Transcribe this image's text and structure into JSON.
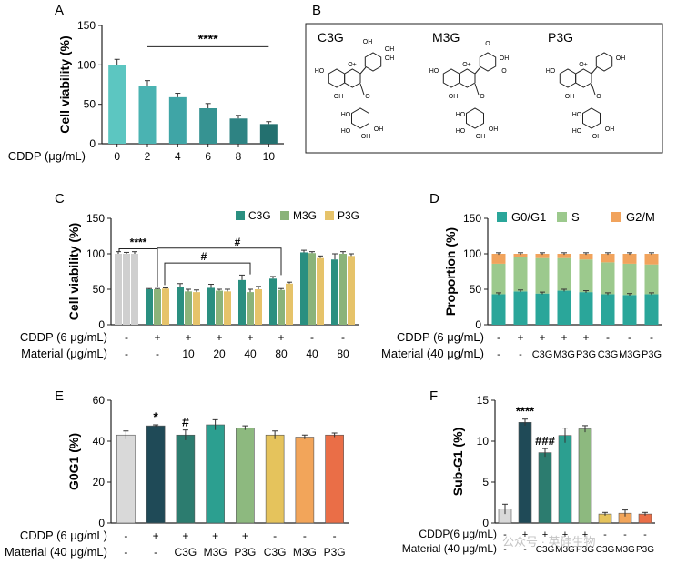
{
  "panel_letters": {
    "a": "A",
    "b": "B",
    "c": "C",
    "d": "D",
    "e": "E",
    "f": "F"
  },
  "panelB": {
    "labels": [
      "C3G",
      "M3G",
      "P3G"
    ],
    "atoms": {
      "OH": "OH",
      "O": "O",
      "Oplus": "O+",
      "HO": "HO",
      "OMe": "O"
    }
  },
  "colors": {
    "panelA": [
      "#5cc6c1",
      "#4ab3b2",
      "#3fa5a6",
      "#369392",
      "#2e8383",
      "#23706f"
    ],
    "c3g": "#2a8f80",
    "m3g": "#8bb37a",
    "p3g": "#e6c36a",
    "grey": "#cfcfcf",
    "d_g0g1": "#2aa69a",
    "d_s": "#9cc98d",
    "d_g2m": "#f1a35c",
    "e_bars": [
      "#d9d9d9",
      "#1f4a57",
      "#2c7c6f",
      "#2c9f90",
      "#8db97f",
      "#e5c35c",
      "#f2a55a",
      "#ea6e47"
    ],
    "f_bars": [
      "#d9d9d9",
      "#1f4a57",
      "#2c7c6f",
      "#2c9f90",
      "#8db97f",
      "#e5c35c",
      "#f2a55a",
      "#ea6e47"
    ]
  },
  "chart_data": [
    {
      "id": "A",
      "type": "bar",
      "ylabel": "Cell viability (%)",
      "xlabel": "CDDP (μg/mL)",
      "categories": [
        "0",
        "2",
        "4",
        "6",
        "8",
        "10"
      ],
      "values": [
        100,
        73,
        59,
        45,
        32,
        25
      ],
      "errors": [
        7,
        7,
        5,
        6,
        4,
        3
      ],
      "ylim": [
        0,
        150
      ],
      "yticks": [
        0,
        50,
        100,
        150
      ],
      "annotation": "****"
    },
    {
      "id": "C",
      "type": "bar",
      "ylabel": "Cell viability (%)",
      "legend": [
        "C3G",
        "M3G",
        "P3G"
      ],
      "row_labels": [
        "CDDP (6 μg/mL)",
        "Material (μg/mL)"
      ],
      "cddp_row": [
        "-",
        "+",
        "+",
        "+",
        "+",
        "+",
        "-",
        "-"
      ],
      "material_row": [
        "-",
        "-",
        "10",
        "20",
        "40",
        "80",
        "40",
        "80"
      ],
      "ylim": [
        0,
        150
      ],
      "yticks": [
        0,
        50,
        100,
        150
      ],
      "series": [
        {
          "name": "C3G",
          "values": [
            100,
            50,
            53,
            52,
            63,
            65,
            102,
            92
          ],
          "errors": [
            3,
            1,
            5,
            5,
            7,
            3,
            3,
            8
          ]
        },
        {
          "name": "M3G",
          "values": [
            100,
            50,
            47,
            48,
            46,
            49,
            101,
            100
          ],
          "errors": [
            2,
            1,
            3,
            2,
            4,
            2,
            2,
            3
          ]
        },
        {
          "name": "P3G",
          "values": [
            100,
            51,
            46,
            47,
            50,
            58,
            94,
            97
          ],
          "errors": [
            3,
            1,
            3,
            3,
            4,
            2,
            3,
            3
          ]
        }
      ],
      "annotations": [
        "****",
        "#",
        "#"
      ]
    },
    {
      "id": "D",
      "type": "stacked-bar",
      "ylabel": "Proportion (%)",
      "legend": [
        "G0/G1",
        "S",
        "G2/M"
      ],
      "row_labels": [
        "CDDP (6 μg/mL)",
        "Material (40 μg/mL)"
      ],
      "cddp_row": [
        "-",
        "+",
        "+",
        "+",
        "+",
        "-",
        "-",
        "-"
      ],
      "material_row": [
        "-",
        "-",
        "C3G",
        "M3G",
        "P3G",
        "C3G",
        "M3G",
        "P3G"
      ],
      "ylim": [
        0,
        150
      ],
      "yticks": [
        0,
        50,
        100,
        150
      ],
      "series": [
        {
          "name": "G0/G1",
          "values": [
            43,
            47,
            44,
            48,
            46,
            43,
            42,
            43
          ]
        },
        {
          "name": "S",
          "values": [
            43,
            48,
            50,
            46,
            46,
            45,
            44,
            42
          ]
        },
        {
          "name": "G2/M",
          "values": [
            14,
            5,
            6,
            6,
            8,
            12,
            14,
            15
          ]
        }
      ]
    },
    {
      "id": "E",
      "type": "bar",
      "ylabel": "G0G1 (%)",
      "row_labels": [
        "CDDP (6 μg/mL)",
        "Material (40 μg/mL)"
      ],
      "cddp_row": [
        "-",
        "+",
        "+",
        "+",
        "+",
        "-",
        "-",
        "-"
      ],
      "material_row": [
        "-",
        "-",
        "C3G",
        "M3G",
        "P3G",
        "C3G",
        "M3G",
        "P3G"
      ],
      "ylim": [
        0,
        60
      ],
      "yticks": [
        0,
        20,
        40,
        60
      ],
      "values": [
        43,
        47.5,
        43,
        48,
        46.5,
        43,
        42,
        43
      ],
      "errors": [
        2,
        0.5,
        2.5,
        2.5,
        1,
        2,
        1,
        1
      ],
      "annotations": [
        "",
        "*",
        "#",
        "",
        "",
        "",
        "",
        ""
      ]
    },
    {
      "id": "F",
      "type": "bar",
      "ylabel": "Sub-G1 (%)",
      "row_labels": [
        "CDDP(6 μg/mL)",
        "Material (40 μg/mL)"
      ],
      "cddp_row": [
        "-",
        "+",
        "+",
        "+",
        "+",
        "-",
        "-",
        "-"
      ],
      "material_row": [
        "-",
        "-",
        "C3G",
        "M3G",
        "P3G",
        "C3G",
        "M3G",
        "P3G"
      ],
      "ylim": [
        0,
        15
      ],
      "yticks": [
        0,
        5,
        10,
        15
      ],
      "values": [
        1.7,
        12.3,
        8.6,
        10.7,
        11.5,
        1.1,
        1.2,
        1.1
      ],
      "errors": [
        0.6,
        0.4,
        0.5,
        0.9,
        0.4,
        0.2,
        0.4,
        0.2
      ],
      "annotations": [
        "",
        "****",
        "###",
        "",
        "",
        "",
        "",
        ""
      ]
    }
  ],
  "watermark": "公众号 · 英硅生物"
}
